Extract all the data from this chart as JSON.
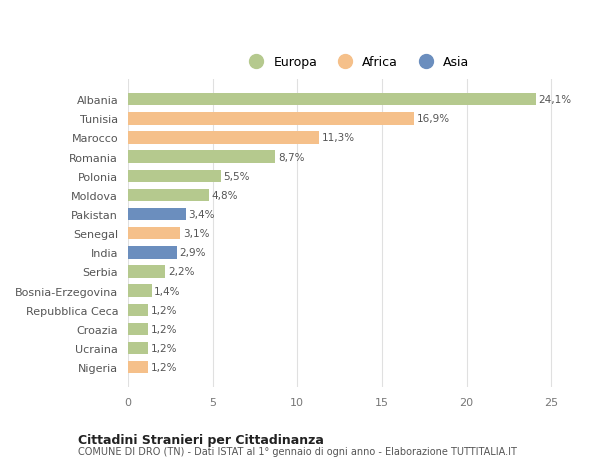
{
  "categories": [
    "Albania",
    "Tunisia",
    "Marocco",
    "Romania",
    "Polonia",
    "Moldova",
    "Pakistan",
    "Senegal",
    "India",
    "Serbia",
    "Bosnia-Erzegovina",
    "Repubblica Ceca",
    "Croazia",
    "Ucraina",
    "Nigeria"
  ],
  "values": [
    24.1,
    16.9,
    11.3,
    8.7,
    5.5,
    4.8,
    3.4,
    3.1,
    2.9,
    2.2,
    1.4,
    1.2,
    1.2,
    1.2,
    1.2
  ],
  "labels": [
    "24,1%",
    "16,9%",
    "11,3%",
    "8,7%",
    "5,5%",
    "4,8%",
    "3,4%",
    "3,1%",
    "2,9%",
    "2,2%",
    "1,4%",
    "1,2%",
    "1,2%",
    "1,2%",
    "1,2%"
  ],
  "continents": [
    "Europa",
    "Africa",
    "Africa",
    "Europa",
    "Europa",
    "Europa",
    "Asia",
    "Africa",
    "Asia",
    "Europa",
    "Europa",
    "Europa",
    "Europa",
    "Europa",
    "Africa"
  ],
  "colors": {
    "Europa": "#b5c98e",
    "Africa": "#f5c08a",
    "Asia": "#6b8ebe"
  },
  "background_color": "#ffffff",
  "grid_color": "#e0e0e0",
  "title1": "Cittadini Stranieri per Cittadinanza",
  "title2": "COMUNE DI DRO (TN) - Dati ISTAT al 1° gennaio di ogni anno - Elaborazione TUTTITALIA.IT",
  "xlim": [
    0,
    27
  ],
  "xticks": [
    0,
    5,
    10,
    15,
    20,
    25
  ],
  "bar_height": 0.65,
  "label_fontsize": 7.5,
  "ytick_fontsize": 8,
  "xtick_fontsize": 8
}
